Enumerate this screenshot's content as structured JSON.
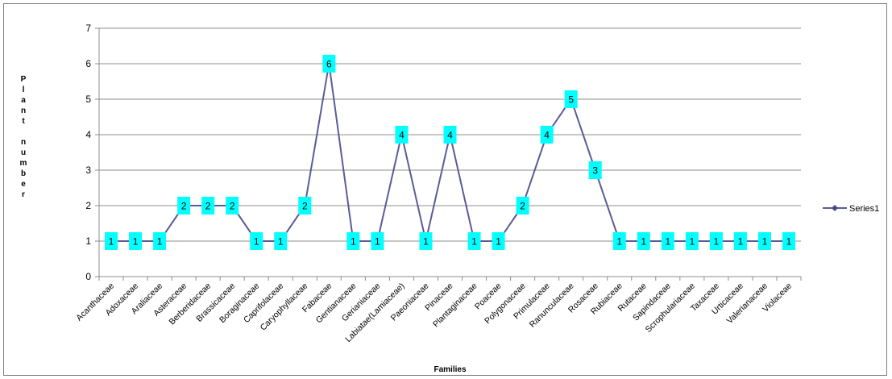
{
  "chart_data": {
    "type": "line",
    "title": "",
    "xlabel": "Families",
    "ylabel": "Plant number",
    "ylim": [
      0,
      7
    ],
    "yticks": [
      "0",
      "1",
      "2",
      "3",
      "4",
      "5",
      "6",
      "7"
    ],
    "grid": true,
    "legend": "right",
    "categories": [
      "Acanthaceae",
      "Adoxaceae",
      "Araliaceae",
      "Asteraceae",
      "Berberidaceae",
      "Brassicaceae",
      "Boraginaceae",
      "Caprifolaceae",
      "Caryophyllaceae",
      "Fabaceae",
      "Gentianaceae",
      "Gerianiaceae",
      "Labiatae(Lamiaceae)",
      "Paeoniaceae",
      "Pinaceae",
      "Plantaginaceae",
      "Poaceae",
      "Polygonaceae",
      "Primulaceae",
      "Ranunculaceae",
      "Rosaceae",
      "Rubiaceae",
      "Rutaceae",
      "Sapindaceae",
      "Scrophulariaceae",
      "Taxaceae",
      "Urticaceae",
      "Valerianaceae",
      "Violaceae"
    ],
    "series": [
      {
        "name": "Series1",
        "values": [
          1,
          1,
          1,
          2,
          2,
          2,
          1,
          1,
          2,
          6,
          1,
          1,
          4,
          1,
          4,
          1,
          1,
          2,
          4,
          5,
          3,
          1,
          1,
          1,
          1,
          1,
          1,
          1,
          1
        ]
      }
    ],
    "colors": {
      "line": "#5b5b9a",
      "marker": "#4a4a8c",
      "label_bg": "#00ffff",
      "grid": "#8c8c8c",
      "axis": "#8c8c8c"
    }
  }
}
